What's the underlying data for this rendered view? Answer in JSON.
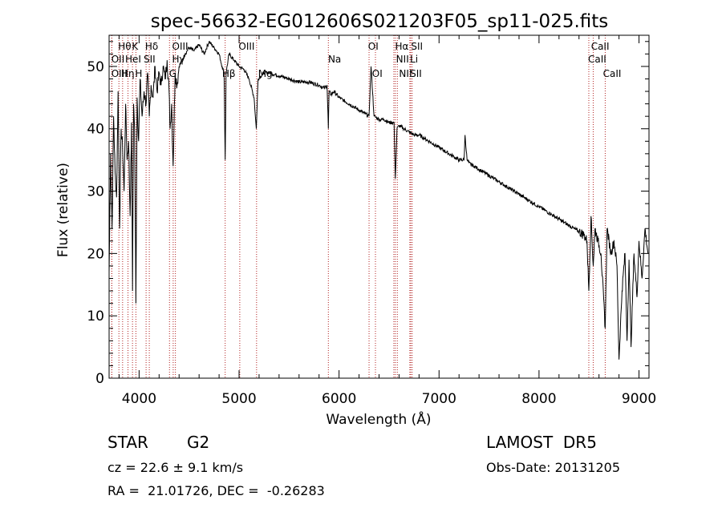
{
  "chart_data": {
    "type": "line",
    "title": "spec-56632-EG012606S021203F05_sp11-025.fits",
    "xlabel": "Wavelength (Å)",
    "ylabel": "Flux (relative)",
    "xlim": [
      3700,
      9100
    ],
    "ylim": [
      0,
      55
    ],
    "xticks": [
      4000,
      5000,
      6000,
      7000,
      8000,
      9000
    ],
    "yticks": [
      0,
      10,
      20,
      30,
      40,
      50
    ],
    "grid": false,
    "series": [
      {
        "color": "#000000",
        "x": [
          3700,
          3715,
          3730,
          3745,
          3760,
          3775,
          3790,
          3805,
          3820,
          3835,
          3850,
          3865,
          3880,
          3895,
          3910,
          3925,
          3934,
          3945,
          3955,
          3968,
          3980,
          3995,
          4010,
          4030,
          4050,
          4070,
          4085,
          4102,
          4120,
          4140,
          4160,
          4180,
          4200,
          4220,
          4240,
          4260,
          4280,
          4300,
          4310,
          4325,
          4340,
          4360,
          4380,
          4400,
          4430,
          4460,
          4500,
          4550,
          4600,
          4650,
          4700,
          4750,
          4800,
          4830,
          4850,
          4861,
          4870,
          4900,
          4950,
          5000,
          5050,
          5100,
          5150,
          5172,
          5190,
          5250,
          5300,
          5400,
          5500,
          5600,
          5700,
          5800,
          5850,
          5880,
          5893,
          5900,
          5920,
          5950,
          6000,
          6050,
          6100,
          6150,
          6200,
          6250,
          6300,
          6320,
          6350,
          6400,
          6450,
          6500,
          6550,
          6563,
          6580,
          6600,
          6650,
          6700,
          6750,
          6800,
          6850,
          6900,
          6950,
          7000,
          7050,
          7100,
          7150,
          7200,
          7250,
          7260,
          7280,
          7300,
          7350,
          7400,
          7450,
          7500,
          7550,
          7600,
          7650,
          7700,
          7750,
          7800,
          7850,
          7900,
          7950,
          8000,
          8050,
          8100,
          8150,
          8200,
          8250,
          8300,
          8350,
          8400,
          8450,
          8480,
          8498,
          8520,
          8542,
          8560,
          8590,
          8620,
          8662,
          8680,
          8720,
          8750,
          8780,
          8800,
          8830,
          8860,
          8880,
          8900,
          8920,
          8950,
          8980,
          9000,
          9030,
          9060,
          9090
        ],
        "y": [
          17,
          36,
          24,
          42,
          33,
          29,
          46,
          24,
          40,
          37,
          30,
          44,
          35,
          38,
          26,
          41,
          14,
          44,
          40,
          12,
          45,
          38,
          48,
          42,
          46,
          44,
          49,
          42,
          47,
          45,
          50,
          46,
          49,
          47,
          50,
          48,
          51,
          46,
          40,
          44,
          34,
          49,
          47,
          50,
          51,
          52,
          53,
          52.5,
          53.5,
          52,
          54,
          53,
          52,
          50,
          49,
          35,
          49,
          52,
          51,
          50,
          49.5,
          48,
          45,
          40,
          48,
          49,
          49,
          48.5,
          48,
          47.5,
          47.5,
          47,
          46.5,
          47,
          40,
          46,
          45.5,
          46,
          45,
          44.5,
          44,
          43.5,
          43,
          42.5,
          42,
          50,
          42,
          41.5,
          41.5,
          41,
          41,
          32,
          40,
          40.5,
          40,
          39.5,
          39,
          39,
          38.5,
          38,
          37.5,
          37,
          36.5,
          36,
          35.5,
          35,
          35,
          39,
          35,
          34.5,
          34,
          33.5,
          33,
          32.5,
          32,
          31.5,
          31,
          30.5,
          30,
          29.5,
          29,
          28.5,
          28,
          27.5,
          27,
          26.5,
          26,
          25.5,
          25,
          24.5,
          24,
          23.5,
          23,
          22,
          14,
          26,
          18,
          24,
          22,
          20,
          8,
          24,
          20,
          22,
          18,
          3,
          14,
          20,
          6,
          19,
          5,
          20,
          13,
          22,
          16,
          24,
          20
        ]
      }
    ],
    "lines": [
      {
        "label": "Hθ",
        "x": 3798
      },
      {
        "label": "OII",
        "x": 3727
      },
      {
        "label": "OIII",
        "x": 3727
      },
      {
        "label": "Hη",
        "x": 3835
      },
      {
        "label": "HeI",
        "x": 3889
      },
      {
        "label": "K",
        "x": 3934
      },
      {
        "label": "H",
        "x": 3968
      },
      {
        "label": "SII",
        "x": 4070
      },
      {
        "label": "Hδ",
        "x": 4102
      },
      {
        "label": "OIII",
        "x": 4363
      },
      {
        "label": "Hγ",
        "x": 4341
      },
      {
        "label": "G",
        "x": 4304
      },
      {
        "label": "OIII",
        "x": 5007
      },
      {
        "label": "Hβ",
        "x": 4861
      },
      {
        "label": "Mg",
        "x": 5175
      },
      {
        "label": "Na",
        "x": 5893
      },
      {
        "label": "OI",
        "x": 6300
      },
      {
        "label": "OI",
        "x": 6364
      },
      {
        "label": "Hα",
        "x": 6563
      },
      {
        "label": "NII",
        "x": 6548
      },
      {
        "label": "NII",
        "x": 6583
      },
      {
        "label": "SII",
        "x": 6717
      },
      {
        "label": "Li",
        "x": 6708
      },
      {
        "label": "SII",
        "x": 6731
      },
      {
        "label": "CaII",
        "x": 8662
      },
      {
        "label": "CaII",
        "x": 8542
      },
      {
        "label": "CaII",
        "x": 8498
      }
    ]
  },
  "labels_top": [
    {
      "text": "Hθ",
      "x": 3790
    },
    {
      "text": "K",
      "x": 3928
    },
    {
      "text": "Hδ",
      "x": 4060
    },
    {
      "text": "OIII",
      "x": 4330
    },
    {
      "text": "OIII",
      "x": 4995
    },
    {
      "text": "OI",
      "x": 6290
    },
    {
      "text": "Hα",
      "x": 6560
    },
    {
      "text": "SII",
      "x": 6720
    },
    {
      "text": "CaII",
      "x": 8520
    }
  ],
  "labels_mid": [
    {
      "text": "OII",
      "x": 3722
    },
    {
      "text": "HeI",
      "x": 3860
    },
    {
      "text": "SII",
      "x": 4045
    },
    {
      "text": "Hγ",
      "x": 4330
    },
    {
      "text": "Na",
      "x": 5890
    },
    {
      "text": "NII",
      "x": 6570
    },
    {
      "text": "Li",
      "x": 6710
    },
    {
      "text": "CaII",
      "x": 8490
    }
  ],
  "labels_low": [
    {
      "text": "OIII",
      "x": 3722
    },
    {
      "text": "Hη",
      "x": 3820
    },
    {
      "text": "H",
      "x": 3960
    },
    {
      "text": "G",
      "x": 4300
    },
    {
      "text": "Hβ",
      "x": 4830
    },
    {
      "text": "Mg",
      "x": 5190
    },
    {
      "text": "OI",
      "x": 6330
    },
    {
      "text": "NII",
      "x": 6600
    },
    {
      "text": "SII",
      "x": 6710
    },
    {
      "text": "CaII",
      "x": 8640
    }
  ],
  "info": {
    "object_class": "STAR",
    "subclass": "G2",
    "survey": "LAMOST  DR5",
    "cz": "cz = 22.6 ± 9.1 km/s",
    "obs_date": "Obs-Date: 20131205",
    "coords": "RA =  21.01726, DEC =  -0.26283"
  }
}
